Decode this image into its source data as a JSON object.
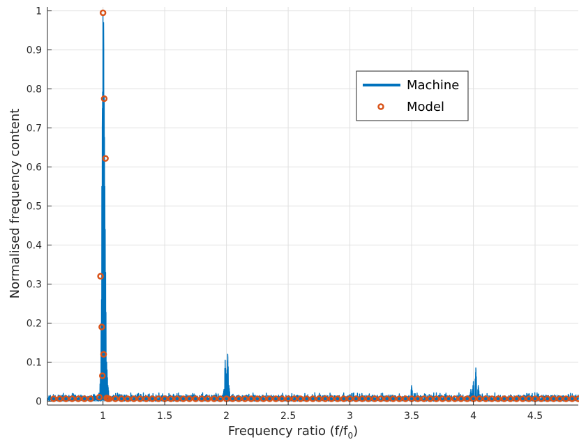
{
  "chart_data": {
    "type": "line",
    "xlabel": "Frequency ratio (f/f",
    "xlabel_subscript": "0",
    "xlabel_suffix": ")",
    "ylabel": "Normalised frequency content",
    "xlim": [
      0.55,
      4.85
    ],
    "ylim": [
      -0.01,
      1.01
    ],
    "xticks": [
      1,
      1.5,
      2,
      2.5,
      3,
      3.5,
      4,
      4.5
    ],
    "xtick_labels": [
      "1",
      "1.5",
      "2",
      "2.5",
      "3",
      "3.5",
      "4",
      "4.5"
    ],
    "yticks": [
      0,
      0.1,
      0.2,
      0.3,
      0.4,
      0.5,
      0.6,
      0.7,
      0.8,
      0.9,
      1
    ],
    "ytick_labels": [
      "0",
      "0.1",
      "0.2",
      "0.3",
      "0.4",
      "0.5",
      "0.6",
      "0.7",
      "0.8",
      "0.9",
      "1"
    ],
    "grid": true,
    "legend_position": "top-right",
    "colors": {
      "machine": "#0072BD",
      "model": "#D95319",
      "grid": "#dfdfdf",
      "axis": "#262626"
    },
    "series": [
      {
        "name": "Machine",
        "style": "line",
        "peaks": [
          [
            0.98,
            0.06
          ],
          [
            0.99,
            0.3
          ],
          [
            0.995,
            0.75
          ],
          [
            1.0,
            0.99
          ],
          [
            1.005,
            0.97
          ],
          [
            1.01,
            0.78
          ],
          [
            1.015,
            0.55
          ],
          [
            1.02,
            0.31
          ],
          [
            1.03,
            0.1
          ],
          [
            1.04,
            0.04
          ],
          [
            1.98,
            0.03
          ],
          [
            1.99,
            0.105
          ],
          [
            2.0,
            0.07
          ],
          [
            2.01,
            0.12
          ],
          [
            2.02,
            0.04
          ],
          [
            3.5,
            0.04
          ],
          [
            3.98,
            0.03
          ],
          [
            4.0,
            0.05
          ],
          [
            4.02,
            0.085
          ],
          [
            4.04,
            0.04
          ]
        ],
        "noise_floor": 0.012
      },
      {
        "name": "Model",
        "style": "markers",
        "points": [
          [
            0.98,
            0.32
          ],
          [
            0.99,
            0.19
          ],
          [
            0.995,
            0.065
          ],
          [
            1.0,
            0.995
          ],
          [
            1.005,
            0.12
          ],
          [
            1.01,
            0.775
          ],
          [
            1.02,
            0.622
          ],
          [
            0.97,
            0.01
          ],
          [
            1.03,
            0.008
          ],
          [
            1.04,
            0.006
          ]
        ],
        "floor_x_step": 0.05,
        "floor_y": 0.006
      }
    ]
  }
}
